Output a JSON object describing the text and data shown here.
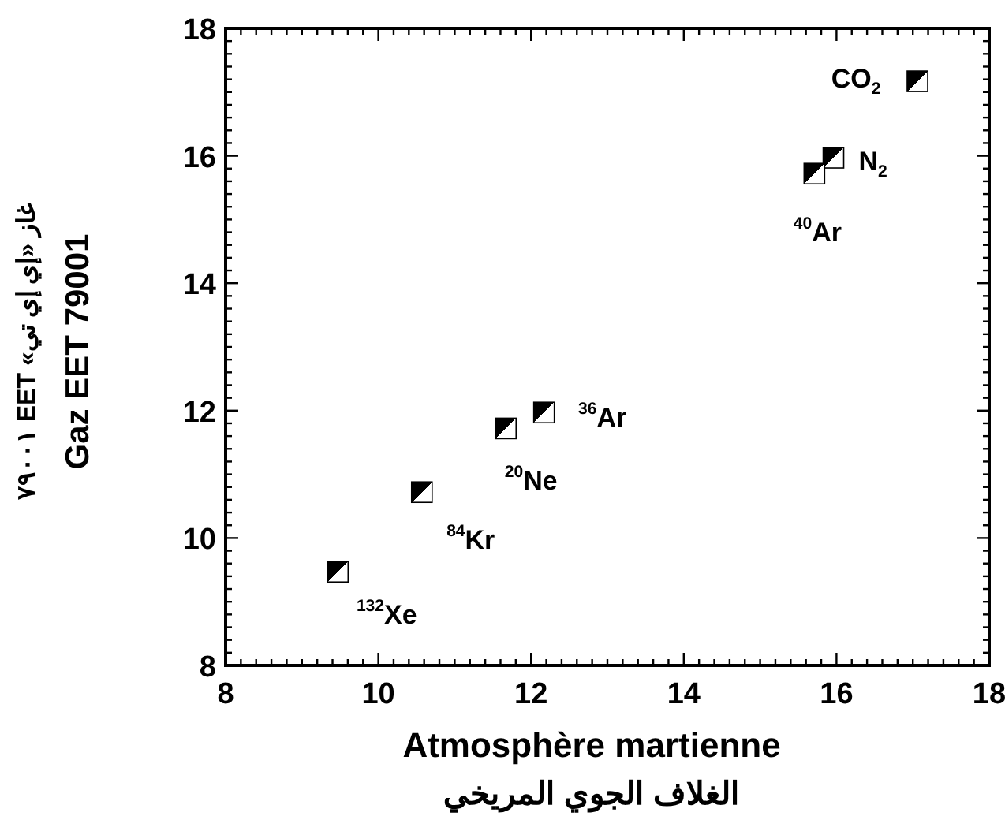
{
  "chart_data": {
    "type": "scatter",
    "xlabel": "Atmosphère martienne\nالغلاف الجوي المريخي",
    "ylabel": "غاز «إي إي تي» EET ٧٩٠٠١\nGaz EET 79001",
    "x": [
      17.06,
      15.96,
      15.71,
      12.17,
      11.67,
      10.57,
      9.47
    ],
    "series": [
      {
        "color": "#000000",
        "values": [
          17.17,
          15.97,
          15.72,
          11.97,
          11.72,
          10.72,
          9.47
        ]
      }
    ],
    "marker": "square",
    "xlim": [
      8,
      18
    ],
    "ylim": [
      8,
      18
    ],
    "xticks": [
      8,
      10,
      12,
      14,
      16,
      18
    ],
    "yticks": [
      8,
      10,
      12,
      14,
      16,
      18
    ],
    "grid": false,
    "annotations": [
      {
        "text": "CO$_{2}$",
        "x": 17.06,
        "y": 17.17
      },
      {
        "text": "N$_{2}$",
        "x": 15.96,
        "y": 15.97
      },
      {
        "text": "$^{40}$Ar",
        "x": 15.71,
        "y": 15.72
      },
      {
        "text": "$^{36}$Ar",
        "x": 12.17,
        "y": 11.97
      },
      {
        "text": "$^{20}$Ne",
        "x": 11.67,
        "y": 11.72
      },
      {
        "text": "$^{84}$Kr",
        "x": 10.57,
        "y": 10.72
      },
      {
        "text": "$^{132}$Xe",
        "x": 9.47,
        "y": 9.47
      }
    ]
  }
}
